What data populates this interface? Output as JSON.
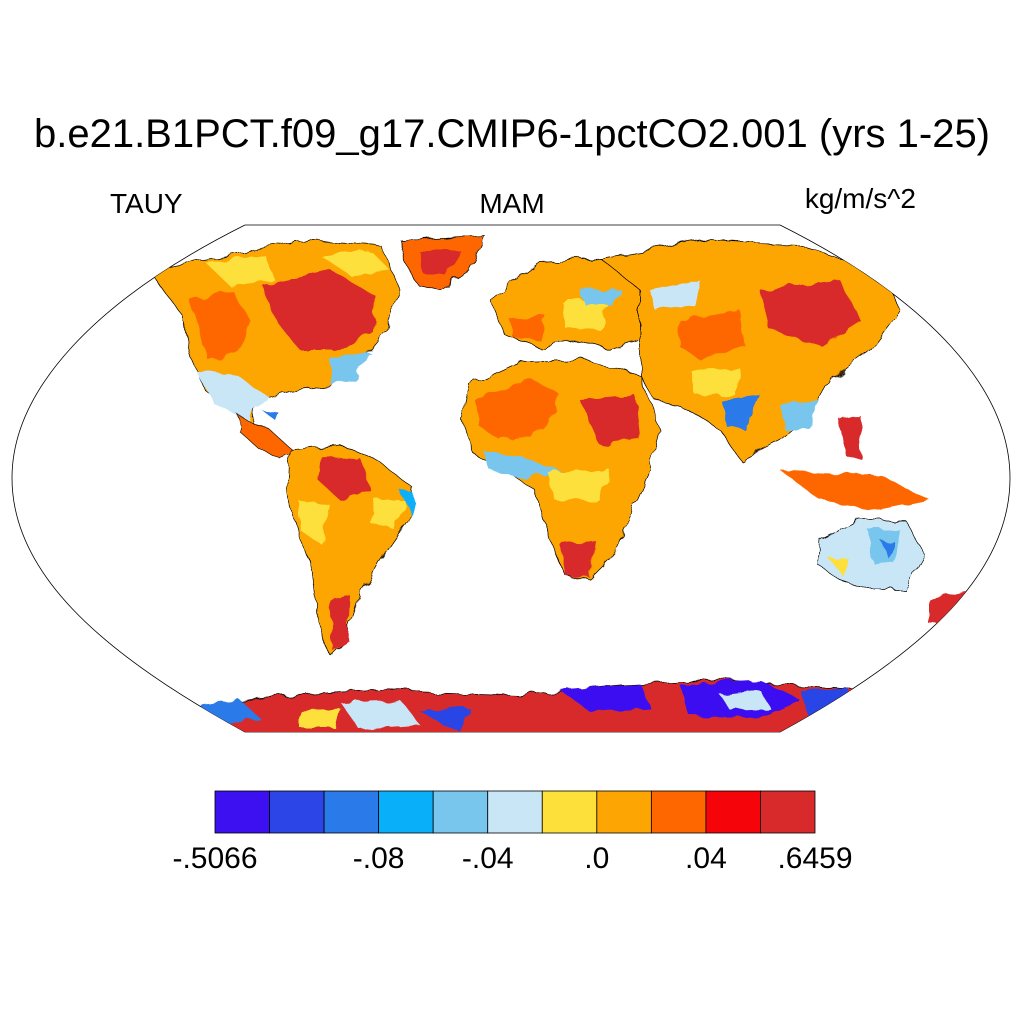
{
  "title": "b.e21.B1PCT.f09_g17.CMIP6-1pctCO2.001 (yrs 1-25)",
  "variable": "TAUY",
  "season": "MAM",
  "units": "kg/m/s^2",
  "colorbar": {
    "colors": [
      "#3d10f2",
      "#2c45e6",
      "#2a7ae9",
      "#0aaffa",
      "#78c6ee",
      "#c8e6f6",
      "#fde03a",
      "#fda502",
      "#fe6600",
      "#f50409",
      "#d82a2b"
    ],
    "labels": [
      {
        "text": ".5066-",
        "value": "-.5066",
        "boundary": 0
      },
      {
        "text": "-.08",
        "value": "-.08",
        "boundary": 3
      },
      {
        "text": "-.04",
        "value": "-.04",
        "boundary": 5
      },
      {
        "text": ".0",
        "value": ".0",
        "boundary": 7
      },
      {
        "text": ".04",
        "value": ".04",
        "boundary": 9
      },
      {
        "text": ".6459",
        "value": ".6459",
        "boundary": 11
      }
    ]
  }
}
